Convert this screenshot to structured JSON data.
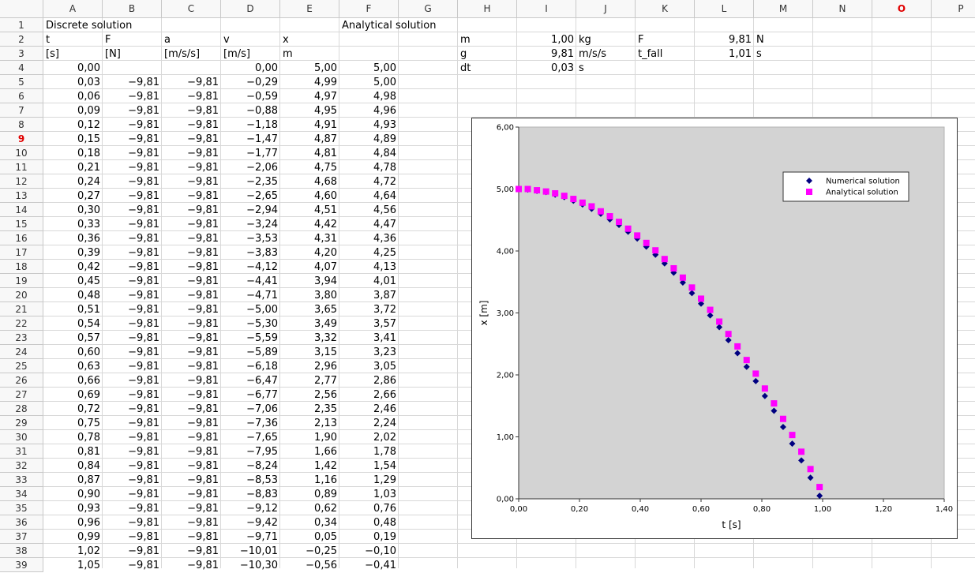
{
  "sheet": {
    "columns": [
      "A",
      "B",
      "C",
      "D",
      "E",
      "F",
      "G",
      "H",
      "I",
      "J",
      "K",
      "L",
      "M",
      "N",
      "O",
      "P"
    ],
    "rows": [
      {
        "number": "1",
        "cells": [
          "Discrete solution",
          null,
          null,
          null,
          null,
          "Analytical solution"
        ]
      },
      {
        "number": "2",
        "cells": [
          "t",
          "F",
          "a",
          "v",
          "x",
          null,
          null,
          "m",
          "1,00",
          "kg",
          "F",
          "9,81",
          "N"
        ]
      },
      {
        "number": "3",
        "cells": [
          "[s]",
          "[N]",
          "[m/s/s]",
          "[m/s]",
          "m",
          null,
          null,
          "g",
          "9,81",
          "m/s/s",
          "t_fall",
          "1,01",
          "s"
        ]
      },
      {
        "number": "4",
        "cells": [
          "0,00",
          null,
          null,
          "0,00",
          "5,00",
          "5,00",
          null,
          "dt",
          "0,03",
          "s"
        ]
      },
      {
        "number": "5",
        "cells": [
          "0,03",
          "−9,81",
          "−9,81",
          "−0,29",
          "4,99",
          "5,00"
        ]
      },
      {
        "number": "6",
        "cells": [
          "0,06",
          "−9,81",
          "−9,81",
          "−0,59",
          "4,97",
          "4,98"
        ]
      },
      {
        "number": "7",
        "cells": [
          "0,09",
          "−9,81",
          "−9,81",
          "−0,88",
          "4,95",
          "4,96"
        ]
      },
      {
        "number": "8",
        "cells": [
          "0,12",
          "−9,81",
          "−9,81",
          "−1,18",
          "4,91",
          "4,93"
        ]
      },
      {
        "number": "9",
        "cells": [
          "0,15",
          "−9,81",
          "−9,81",
          "−1,47",
          "4,87",
          "4,89"
        ]
      },
      {
        "number": "10",
        "cells": [
          "0,18",
          "−9,81",
          "−9,81",
          "−1,77",
          "4,81",
          "4,84"
        ]
      },
      {
        "number": "11",
        "cells": [
          "0,21",
          "−9,81",
          "−9,81",
          "−2,06",
          "4,75",
          "4,78"
        ]
      },
      {
        "number": "12",
        "cells": [
          "0,24",
          "−9,81",
          "−9,81",
          "−2,35",
          "4,68",
          "4,72"
        ]
      },
      {
        "number": "13",
        "cells": [
          "0,27",
          "−9,81",
          "−9,81",
          "−2,65",
          "4,60",
          "4,64"
        ]
      },
      {
        "number": "14",
        "cells": [
          "0,30",
          "−9,81",
          "−9,81",
          "−2,94",
          "4,51",
          "4,56"
        ]
      },
      {
        "number": "15",
        "cells": [
          "0,33",
          "−9,81",
          "−9,81",
          "−3,24",
          "4,42",
          "4,47"
        ]
      },
      {
        "number": "16",
        "cells": [
          "0,36",
          "−9,81",
          "−9,81",
          "−3,53",
          "4,31",
          "4,36"
        ]
      },
      {
        "number": "17",
        "cells": [
          "0,39",
          "−9,81",
          "−9,81",
          "−3,83",
          "4,20",
          "4,25"
        ]
      },
      {
        "number": "18",
        "cells": [
          "0,42",
          "−9,81",
          "−9,81",
          "−4,12",
          "4,07",
          "4,13"
        ]
      },
      {
        "number": "19",
        "cells": [
          "0,45",
          "−9,81",
          "−9,81",
          "−4,41",
          "3,94",
          "4,01"
        ]
      },
      {
        "number": "20",
        "cells": [
          "0,48",
          "−9,81",
          "−9,81",
          "−4,71",
          "3,80",
          "3,87"
        ]
      },
      {
        "number": "21",
        "cells": [
          "0,51",
          "−9,81",
          "−9,81",
          "−5,00",
          "3,65",
          "3,72"
        ]
      },
      {
        "number": "22",
        "cells": [
          "0,54",
          "−9,81",
          "−9,81",
          "−5,30",
          "3,49",
          "3,57"
        ]
      },
      {
        "number": "23",
        "cells": [
          "0,57",
          "−9,81",
          "−9,81",
          "−5,59",
          "3,32",
          "3,41"
        ]
      },
      {
        "number": "24",
        "cells": [
          "0,60",
          "−9,81",
          "−9,81",
          "−5,89",
          "3,15",
          "3,23"
        ]
      },
      {
        "number": "25",
        "cells": [
          "0,63",
          "−9,81",
          "−9,81",
          "−6,18",
          "2,96",
          "3,05"
        ]
      },
      {
        "number": "26",
        "cells": [
          "0,66",
          "−9,81",
          "−9,81",
          "−6,47",
          "2,77",
          "2,86"
        ]
      },
      {
        "number": "27",
        "cells": [
          "0,69",
          "−9,81",
          "−9,81",
          "−6,77",
          "2,56",
          "2,66"
        ]
      },
      {
        "number": "28",
        "cells": [
          "0,72",
          "−9,81",
          "−9,81",
          "−7,06",
          "2,35",
          "2,46"
        ]
      },
      {
        "number": "29",
        "cells": [
          "0,75",
          "−9,81",
          "−9,81",
          "−7,36",
          "2,13",
          "2,24"
        ]
      },
      {
        "number": "30",
        "cells": [
          "0,78",
          "−9,81",
          "−9,81",
          "−7,65",
          "1,90",
          "2,02"
        ]
      },
      {
        "number": "31",
        "cells": [
          "0,81",
          "−9,81",
          "−9,81",
          "−7,95",
          "1,66",
          "1,78"
        ]
      },
      {
        "number": "32",
        "cells": [
          "0,84",
          "−9,81",
          "−9,81",
          "−8,24",
          "1,42",
          "1,54"
        ]
      },
      {
        "number": "33",
        "cells": [
          "0,87",
          "−9,81",
          "−9,81",
          "−8,53",
          "1,16",
          "1,29"
        ]
      },
      {
        "number": "34",
        "cells": [
          "0,90",
          "−9,81",
          "−9,81",
          "−8,83",
          "0,89",
          "1,03"
        ]
      },
      {
        "number": "35",
        "cells": [
          "0,93",
          "−9,81",
          "−9,81",
          "−9,12",
          "0,62",
          "0,76"
        ]
      },
      {
        "number": "36",
        "cells": [
          "0,96",
          "−9,81",
          "−9,81",
          "−9,42",
          "0,34",
          "0,48"
        ]
      },
      {
        "number": "37",
        "cells": [
          "0,99",
          "−9,81",
          "−9,81",
          "−9,71",
          "0,05",
          "0,19"
        ]
      },
      {
        "number": "38",
        "cells": [
          "1,02",
          "−9,81",
          "−9,81",
          "−10,01",
          "−0,25",
          "−0,10"
        ]
      },
      {
        "number": "39",
        "cells": [
          "1,05",
          "−9,81",
          "−9,81",
          "−10,30",
          "−0,56",
          "−0,41"
        ]
      }
    ]
  },
  "chart_data": {
    "type": "scatter",
    "xlabel": "t [s]",
    "ylabel": "x [m]",
    "x": [
      0,
      0.03,
      0.06,
      0.09,
      0.12,
      0.15,
      0.18,
      0.21,
      0.24,
      0.27,
      0.3,
      0.33,
      0.36,
      0.39,
      0.42,
      0.45,
      0.48,
      0.51,
      0.54,
      0.57,
      0.6,
      0.63,
      0.66,
      0.69,
      0.72,
      0.75,
      0.78,
      0.81,
      0.84,
      0.87,
      0.9,
      0.93,
      0.96,
      0.99
    ],
    "series": [
      {
        "name": "Numerical solution",
        "color": "#000080",
        "marker": "diamond",
        "values": [
          5,
          4.99,
          4.97,
          4.95,
          4.91,
          4.87,
          4.81,
          4.75,
          4.68,
          4.6,
          4.51,
          4.42,
          4.31,
          4.2,
          4.07,
          3.94,
          3.8,
          3.65,
          3.49,
          3.32,
          3.15,
          2.96,
          2.77,
          2.56,
          2.35,
          2.13,
          1.9,
          1.66,
          1.42,
          1.16,
          0.89,
          0.62,
          0.34,
          0.05
        ]
      },
      {
        "name": "Analytical solution",
        "color": "#ff00ff",
        "marker": "square",
        "values": [
          5,
          5,
          4.98,
          4.96,
          4.93,
          4.89,
          4.84,
          4.78,
          4.72,
          4.64,
          4.56,
          4.47,
          4.36,
          4.25,
          4.13,
          4.01,
          3.87,
          3.72,
          3.57,
          3.41,
          3.23,
          3.05,
          2.86,
          2.66,
          2.46,
          2.24,
          2.02,
          1.78,
          1.54,
          1.29,
          1.03,
          0.76,
          0.48,
          0.19
        ]
      }
    ],
    "xlim": [
      0,
      1.4
    ],
    "ylim": [
      0,
      6
    ],
    "xticks": [
      {
        "value": 0,
        "label": "0,00"
      },
      {
        "value": 0.2,
        "label": "0,20"
      },
      {
        "value": 0.4,
        "label": "0,40"
      },
      {
        "value": 0.6,
        "label": "0,60"
      },
      {
        "value": 0.8,
        "label": "0,80"
      },
      {
        "value": 1,
        "label": "1,00"
      },
      {
        "value": 1.2,
        "label": "1,20"
      },
      {
        "value": 1.4,
        "label": "1,40"
      }
    ],
    "yticks": [
      {
        "value": 0,
        "label": "0,00"
      },
      {
        "value": 1,
        "label": "1,00"
      },
      {
        "value": 2,
        "label": "2,00"
      },
      {
        "value": 3,
        "label": "3,00"
      },
      {
        "value": 4,
        "label": "4,00"
      },
      {
        "value": 5,
        "label": "5,00"
      },
      {
        "value": 6,
        "label": "6,00"
      }
    ],
    "plot_background": "#d3d3d3",
    "legend": "upper right"
  }
}
